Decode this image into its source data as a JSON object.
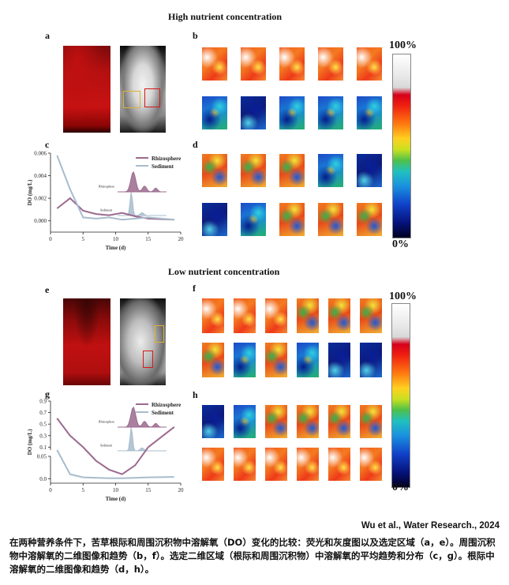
{
  "figure": {
    "top_title": "High nutrient concentration",
    "bottom_title": "Low nutrient concentration",
    "panels": {
      "a": "a",
      "b": "b",
      "c": "c",
      "d": "d",
      "e": "e",
      "f": "f",
      "g": "g",
      "h": "h"
    },
    "colorbar": {
      "max_label": "100%",
      "min_label": "0%"
    },
    "colors": {
      "rhizosphere": "#9b6a8e",
      "sediment": "#a8bccc",
      "yellow_box": "#e0b030",
      "red_box": "#d81818"
    }
  },
  "chart_data": [
    {
      "id": "c",
      "type": "line",
      "xlabel": "Time (d)",
      "ylabel": "DO (mg/L)",
      "xlim": [
        0,
        20
      ],
      "ylim": [
        -0.001,
        0.006
      ],
      "xticks": [
        "0",
        "5",
        "10",
        "15",
        "20"
      ],
      "yticks": [
        "0.000",
        "0.002",
        "0.004",
        "0.006"
      ],
      "series": [
        {
          "name": "Rhizosphere",
          "x": [
            1,
            3,
            5,
            7,
            9,
            11,
            13,
            15,
            19
          ],
          "y": [
            0.0011,
            0.002,
            0.0009,
            0.0006,
            0.0005,
            0.0007,
            0.0004,
            0.0002,
            0.0001
          ]
        },
        {
          "name": "Sediment",
          "x": [
            1,
            3,
            5,
            7,
            9,
            11,
            13,
            15,
            19
          ],
          "y": [
            0.0058,
            0.0028,
            0.0003,
            0.0002,
            0.0003,
            0.0001,
            0.0002,
            0.0003,
            0.0001
          ]
        }
      ],
      "legend": "top-right",
      "inset": {
        "labels": [
          "Rhizosphere",
          "Sediment"
        ]
      }
    },
    {
      "id": "g",
      "type": "line",
      "xlabel": "Time (d)",
      "ylabel": "DO (mg/L)",
      "xlim": [
        0,
        20
      ],
      "ylim_upper": [
        0.05,
        0.9
      ],
      "ylim_lower": [
        -0.01,
        0.05
      ],
      "xticks": [
        "0",
        "5",
        "10",
        "15",
        "20"
      ],
      "yticks_upper": [
        "0.9",
        "0.7",
        "0.5",
        "0.3",
        "0.1"
      ],
      "yticks_lower": [
        "0.05",
        "0.0"
      ],
      "series": [
        {
          "name": "Rhizosphere",
          "x": [
            1,
            3,
            5,
            7,
            9,
            11,
            13,
            15,
            19
          ],
          "y": [
            0.6,
            0.3,
            0.1,
            0.04,
            0.02,
            0.01,
            0.03,
            0.1,
            0.45
          ]
        },
        {
          "name": "Sediment",
          "x": [
            1,
            3,
            5,
            7,
            9,
            11,
            13,
            15,
            19
          ],
          "y": [
            0.05,
            0.01,
            0.003,
            0.002,
            0.001,
            0.001,
            0.002,
            0.003,
            0.004
          ]
        }
      ],
      "legend": "top-right",
      "inset": {
        "labels": [
          "Rhizosphere",
          "Sediment"
        ]
      }
    }
  ],
  "credit": "Wu et al., Water Research., 2024",
  "caption": "在两种营养条件下，苦草根际和周围沉积物中溶解氧（DO）变化的比较：荧光和灰度图以及选定区域（a，e）。周围沉积物中溶解氧的二维图像和趋势（b，f）。选定二维区域（根际和周围沉积物）中溶解氧的平均趋势和分布（c，g）。根际中溶解氧的二维图像和趋势（d，h）。"
}
